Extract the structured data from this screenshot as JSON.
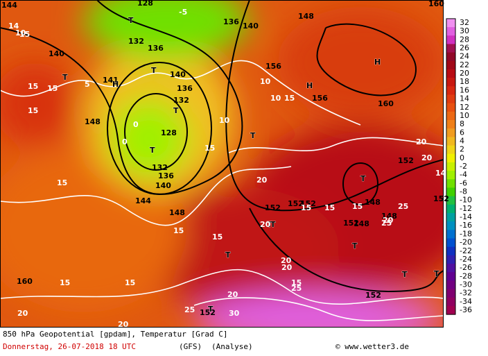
{
  "caption": {
    "title": "850 hPa Geopotential [gpdam], Temperatur [Grad C]",
    "date": "Donnerstag, 26-07-2018  18 UTC",
    "model": "(GFS)",
    "run": "(Analyse)",
    "source": "© www.wetter3.de"
  },
  "legend": {
    "levels": [
      32,
      30,
      28,
      26,
      24,
      22,
      20,
      18,
      16,
      14,
      12,
      10,
      8,
      6,
      4,
      2,
      0,
      -2,
      -4,
      -6,
      -8,
      -10,
      -12,
      -14,
      -16,
      -18,
      -20,
      -22,
      -24,
      -26,
      -28,
      -30,
      -32,
      -34,
      -36
    ],
    "colors": [
      "#f090f0",
      "#e060e0",
      "#d030c0",
      "#a01050",
      "#900828",
      "#a00818",
      "#b80c14",
      "#c81810",
      "#d82810",
      "#e03c10",
      "#e85010",
      "#ec6814",
      "#f08018",
      "#f09c20",
      "#f0b820",
      "#f0d418",
      "#f0f000",
      "#c8f000",
      "#a0f000",
      "#70e000",
      "#40d000",
      "#20c040",
      "#00b070",
      "#00a0a0",
      "#0090c0",
      "#0070d0",
      "#0050d0",
      "#1030c0",
      "#3020b0",
      "#5010a0",
      "#600090",
      "#700080",
      "#800070",
      "#900060",
      "#a00050"
    ]
  },
  "map_labels": [
    "144",
    "14",
    "T",
    "128",
    "-5",
    "136",
    "140",
    "148",
    "160",
    "10",
    "140",
    "132",
    "136",
    "15",
    "H",
    "T",
    "15",
    "5",
    "141",
    "H",
    "T",
    "140",
    "136",
    "15",
    "132",
    "T",
    "10",
    "156",
    "H",
    "10",
    "15",
    "156",
    "160",
    "148",
    "0",
    "128",
    "0",
    "T",
    "132",
    "136",
    "140",
    "15",
    "10",
    "15",
    "20",
    "152",
    "T",
    "20",
    "152",
    "T",
    "14",
    "15",
    "144",
    "148",
    "15",
    "20",
    "15",
    "T",
    "152",
    "152",
    "15",
    "15",
    "15",
    "148",
    "25",
    "148",
    "20",
    "152",
    "20",
    "T",
    "148",
    "T",
    "T",
    "20",
    "152",
    "15",
    "T",
    "25",
    "20",
    "160",
    "15",
    "15",
    "20",
    "152",
    "T",
    "25",
    "30",
    "25",
    "T",
    "152",
    "20",
    "20"
  ]
}
